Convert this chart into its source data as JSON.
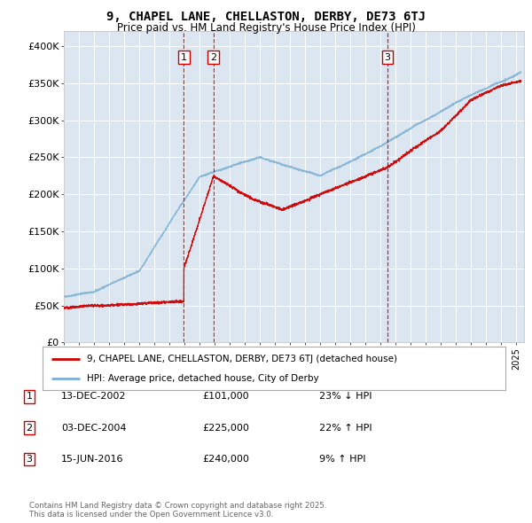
{
  "title": "9, CHAPEL LANE, CHELLASTON, DERBY, DE73 6TJ",
  "subtitle": "Price paid vs. HM Land Registry's House Price Index (HPI)",
  "ylim": [
    0,
    420000
  ],
  "xlim_start": 1995.0,
  "xlim_end": 2025.5,
  "background_color": "#ffffff",
  "plot_bg_color": "#dce6f1",
  "grid_color": "#ffffff",
  "red_line_color": "#cc0000",
  "blue_line_color": "#7bafd4",
  "transaction_dates": [
    2002.96,
    2004.92,
    2016.45
  ],
  "transaction_prices": [
    101000,
    225000,
    240000
  ],
  "transaction_labels": [
    "1",
    "2",
    "3"
  ],
  "legend_label_red": "9, CHAPEL LANE, CHELLASTON, DERBY, DE73 6TJ (detached house)",
  "legend_label_blue": "HPI: Average price, detached house, City of Derby",
  "table_rows": [
    {
      "num": "1",
      "date": "13-DEC-2002",
      "price": "£101,000",
      "change": "23% ↓ HPI"
    },
    {
      "num": "2",
      "date": "03-DEC-2004",
      "price": "£225,000",
      "change": "22% ↑ HPI"
    },
    {
      "num": "3",
      "date": "15-JUN-2016",
      "price": "£240,000",
      "change": "9% ↑ HPI"
    }
  ],
  "footer": "Contains HM Land Registry data © Crown copyright and database right 2025.\nThis data is licensed under the Open Government Licence v3.0."
}
